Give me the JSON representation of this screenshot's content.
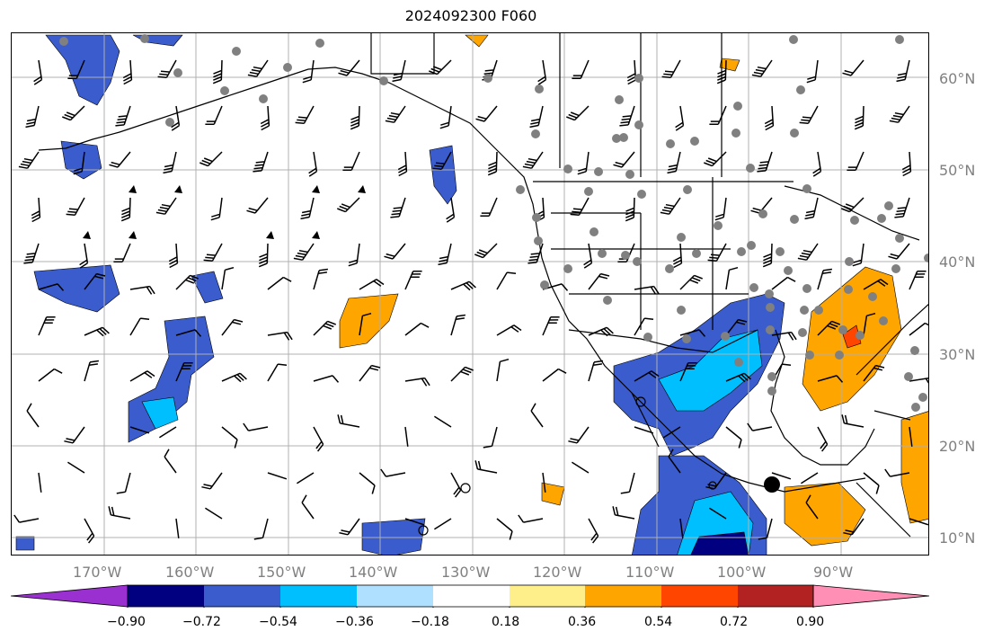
{
  "title": "2024092300 F060",
  "latitude_labels": [
    "60°N",
    "50°N",
    "40°N",
    "30°N",
    "20°N",
    "10°N"
  ],
  "longitude_labels": [
    "170°W",
    "160°W",
    "150°W",
    "140°W",
    "130°W",
    "120°W",
    "110°W",
    "100°W",
    "90°W"
  ],
  "colorbar": {
    "tick_labels": [
      "−0.90",
      "−0.72",
      "−0.54",
      "−0.36",
      "−0.18",
      "0.18",
      "0.36",
      "0.54",
      "0.72",
      "0.90"
    ],
    "colors": [
      "#9b30d0",
      "#000080",
      "#3a5ccc",
      "#00bfff",
      "#b0e0ff",
      "#ffffff",
      "#ffef8a",
      "#ffa500",
      "#ff4500",
      "#b22222",
      "#ff8fb4"
    ]
  },
  "colors": {
    "grid": "#b0b0b0",
    "coast": "#000000",
    "barb": "#000000",
    "station": "#808080"
  }
}
